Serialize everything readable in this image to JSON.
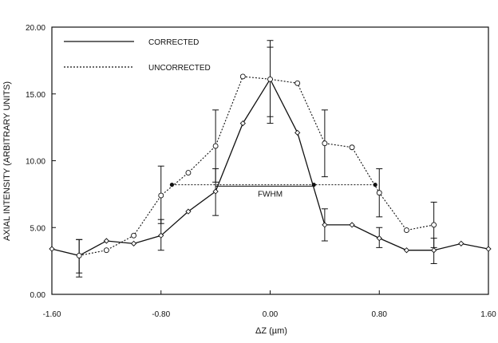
{
  "chart_data": {
    "type": "line",
    "title": "",
    "xlabel": "ΔZ (µm)",
    "ylabel": "AXIAL INTENSITY (ARBITRARY UNITS)",
    "xlim": [
      -1.6,
      1.6
    ],
    "ylim": [
      0,
      20
    ],
    "x_ticks": [
      -1.6,
      -0.8,
      0.0,
      0.8,
      1.6
    ],
    "x_tick_labels": [
      "-1.60",
      "-0.80",
      "0.00",
      "0.80",
      "1.60"
    ],
    "y_ticks": [
      0,
      5,
      10,
      15,
      20
    ],
    "y_tick_labels": [
      "0.00",
      "5.00",
      "10.00",
      "15.00",
      "20.00"
    ],
    "grid": false,
    "legend_position": "top-left",
    "series": [
      {
        "name": "CORRECTED",
        "style": "solid",
        "marker": "diamond",
        "color": "#111111",
        "x": [
          -1.6,
          -1.4,
          -1.2,
          -1.0,
          -0.8,
          -0.6,
          -0.4,
          -0.2,
          0.0,
          0.2,
          0.4,
          0.6,
          0.8,
          1.0,
          1.2,
          1.4,
          1.6
        ],
        "y": [
          3.4,
          2.9,
          4.0,
          3.8,
          4.4,
          6.2,
          7.7,
          12.8,
          16.1,
          12.1,
          5.2,
          5.2,
          4.2,
          3.3,
          3.3,
          3.8,
          3.4
        ],
        "errorbars": [
          {
            "x": -1.4,
            "low": 1.6,
            "high": 4.1
          },
          {
            "x": -0.8,
            "low": 3.3,
            "high": 5.6
          },
          {
            "x": -0.4,
            "low": 5.9,
            "high": 9.4
          },
          {
            "x": 0.0,
            "low": 13.3,
            "high": 18.5
          },
          {
            "x": 0.4,
            "low": 4.0,
            "high": 6.4
          },
          {
            "x": 0.8,
            "low": 3.5,
            "high": 5.0
          },
          {
            "x": 1.2,
            "low": 2.3,
            "high": 4.2
          }
        ]
      },
      {
        "name": "UNCORRECTED",
        "style": "dashed",
        "marker": "circle",
        "color": "#111111",
        "x": [
          -1.4,
          -1.2,
          -1.0,
          -0.8,
          -0.6,
          -0.4,
          -0.2,
          0.0,
          0.2,
          0.4,
          0.6,
          0.8,
          1.0,
          1.2
        ],
        "y": [
          2.9,
          3.3,
          4.4,
          7.4,
          9.1,
          11.1,
          16.3,
          16.1,
          15.8,
          11.3,
          11.0,
          7.6,
          4.8,
          5.2
        ],
        "errorbars": [
          {
            "x": -1.4,
            "low": 1.3,
            "high": 4.1
          },
          {
            "x": -0.8,
            "low": 5.3,
            "high": 9.6
          },
          {
            "x": -0.4,
            "low": 8.4,
            "high": 13.8
          },
          {
            "x": 0.0,
            "low": 12.8,
            "high": 19.0
          },
          {
            "x": 0.4,
            "low": 8.8,
            "high": 13.8
          },
          {
            "x": 0.8,
            "low": 5.8,
            "high": 9.4
          },
          {
            "x": 1.2,
            "low": 3.5,
            "high": 6.9
          }
        ]
      }
    ],
    "annotations": [
      {
        "text": "FWHM",
        "x": 0.0,
        "y": 7.3
      },
      {
        "type": "hline",
        "name": "fwhm-corrected",
        "style": "solid",
        "x1": -0.4,
        "x2": 0.32,
        "y": 8.1
      },
      {
        "type": "hline",
        "name": "fwhm-uncorrected",
        "style": "dashed",
        "x1": -0.72,
        "x2": 0.77,
        "y": 8.2
      },
      {
        "type": "point",
        "name": "half-max-marker",
        "x": -0.72,
        "y": 8.2
      },
      {
        "type": "point",
        "name": "half-max-marker",
        "x": 0.77,
        "y": 8.2
      },
      {
        "type": "point",
        "name": "half-max-marker",
        "x": 0.32,
        "y": 8.2
      }
    ]
  }
}
